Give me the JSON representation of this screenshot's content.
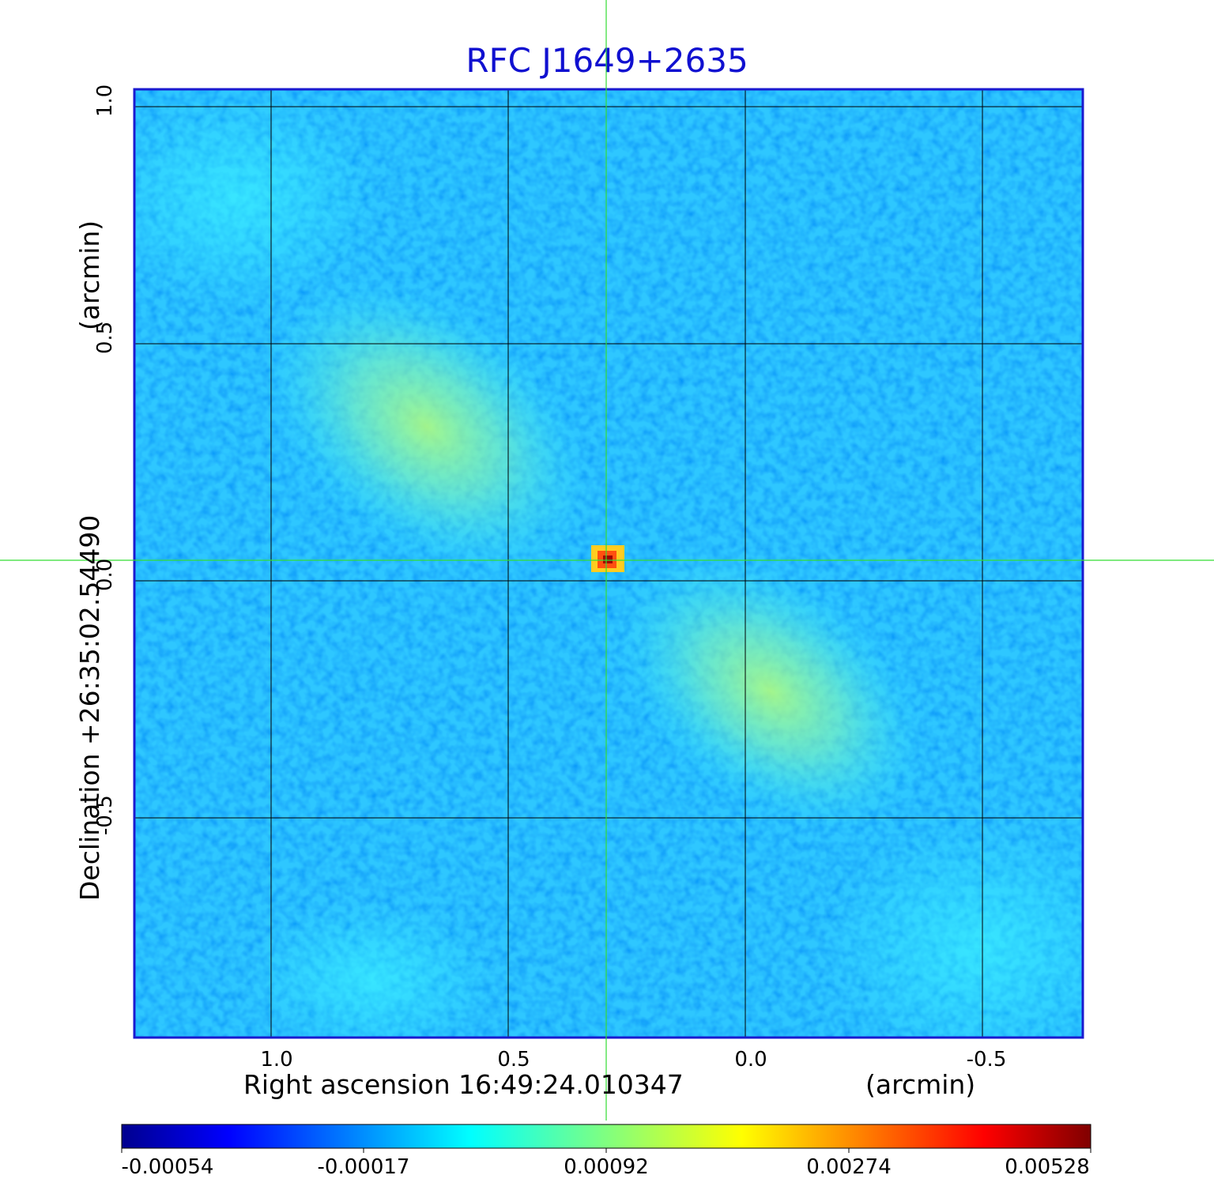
{
  "title": "RFC J1649+2635",
  "axes": {
    "xlabel": "Right ascension  16:49:24.010347",
    "xunit": "(arcmin)",
    "ylabel": "Declination  +26:35:02.54490",
    "yunit": "(arcmin)",
    "xticks": [
      "1.0",
      "0.5",
      "0.0",
      "-0.5"
    ],
    "yticks": [
      "1.0",
      "0.5",
      "0.0",
      "-0.5"
    ]
  },
  "colorbar": {
    "ticks": [
      "-0.00054",
      "-0.00017",
      "0.00092",
      "0.00274",
      "0.00528"
    ]
  },
  "colors": {
    "title": "#1010d0",
    "frame": "#1a1ad0",
    "crosshair": "#33dd33",
    "grid": "#000000"
  }
}
